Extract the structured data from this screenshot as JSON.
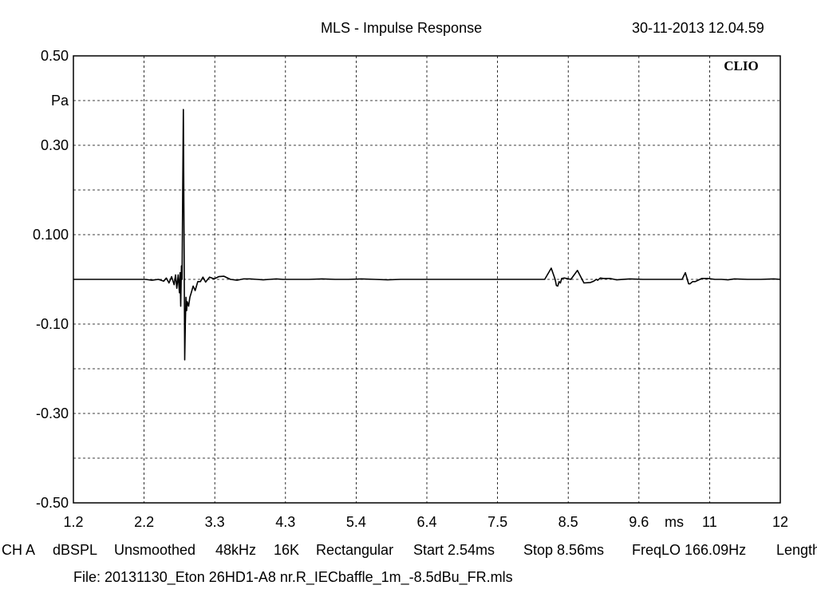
{
  "header": {
    "title": "MLS - Impulse Response",
    "timestamp": "30-11-2013 12.04.59"
  },
  "chart_data": {
    "type": "line",
    "title": "MLS - Impulse Response",
    "xlabel": "ms",
    "ylabel": "Pa",
    "brand": "CLIO",
    "grid": true,
    "xlim": [
      1.2,
      12
    ],
    "ylim": [
      -0.5,
      0.5
    ],
    "x_ticks": [
      "1.2",
      "2.2",
      "3.3",
      "4.3",
      "5.4",
      "6.4",
      "7.5",
      "8.5",
      "9.6",
      "11",
      "12"
    ],
    "y_ticks": [
      "0.50",
      "Pa",
      "0.30",
      "",
      "0.100",
      "",
      "-0.10",
      "",
      "-0.30",
      "",
      "-0.50"
    ],
    "series": [
      {
        "color": "#000000",
        "x": [
          1.2,
          2.18,
          2.3,
          2.4,
          2.5,
          2.58,
          2.62,
          2.66,
          2.7,
          2.74,
          2.76,
          2.78,
          2.8,
          2.82,
          2.83,
          2.84,
          2.85,
          2.86,
          2.87,
          2.88,
          2.89,
          2.9,
          2.91,
          2.92,
          2.93,
          2.94,
          2.96,
          2.98,
          3.0,
          3.03,
          3.06,
          3.1,
          3.14,
          3.18,
          3.22,
          3.28,
          3.35,
          3.42,
          3.5,
          3.6,
          3.7,
          3.8,
          3.9,
          4.0,
          4.1,
          4.2,
          4.3,
          4.4,
          4.6,
          4.8,
          5.0,
          5.2,
          5.4,
          5.6,
          5.8,
          6.0,
          6.2,
          6.4,
          6.6,
          6.8,
          7.0,
          7.2,
          7.4,
          7.6,
          7.8,
          8.0,
          8.2,
          8.4,
          8.5,
          8.56,
          8.58,
          8.6,
          8.62,
          8.64,
          8.66,
          8.7,
          8.8,
          8.9,
          9.0,
          9.1,
          9.15,
          9.19,
          9.21,
          9.25,
          9.3,
          9.4,
          9.5,
          9.7,
          9.9,
          10.1,
          10.3,
          10.4,
          10.5,
          10.55,
          10.6,
          10.62,
          10.66,
          10.7,
          10.8,
          10.9,
          11.0,
          11.1,
          11.2,
          11.3,
          11.5,
          11.7,
          11.9,
          12.0
        ],
        "y": [
          0.0,
          0.0,
          0.0,
          -0.002,
          0.0,
          -0.004,
          0.003,
          -0.008,
          0.006,
          -0.012,
          0.01,
          -0.02,
          0.01,
          -0.03,
          0.015,
          -0.06,
          0.03,
          0.0,
          0.2,
          0.38,
          0.12,
          -0.18,
          -0.1,
          -0.04,
          -0.07,
          -0.05,
          -0.06,
          -0.04,
          -0.03,
          -0.015,
          -0.025,
          -0.005,
          -0.005,
          0.005,
          -0.006,
          0.005,
          0.001,
          0.006,
          0.007,
          0.0,
          -0.002,
          0.001,
          0.001,
          0.0,
          -0.001,
          0.0,
          0.001,
          0.0,
          0.0,
          0.0,
          0.001,
          0.0,
          0.0,
          0.001,
          0.0,
          -0.001,
          0.0,
          0.0,
          0.0,
          0.0,
          0.0,
          0.0,
          0.0,
          0.0,
          0.0,
          0.0,
          0.0,
          0.0,
          0.025,
          0.0,
          -0.014,
          -0.015,
          -0.005,
          -0.008,
          0.002,
          0.003,
          0.0,
          0.02,
          -0.008,
          -0.007,
          -0.004,
          0.0,
          -0.002,
          0.003,
          0.002,
          0.002,
          -0.001,
          0.001,
          0.0,
          0.0,
          0.0,
          0.0,
          0.0,
          0.015,
          -0.01,
          -0.01,
          -0.005,
          -0.005,
          0.002,
          0.002,
          0.0,
          0.0,
          -0.001,
          0.001,
          0.0,
          0.0,
          0.001,
          0.0
        ]
      }
    ]
  },
  "status_bar": [
    "CH A",
    "dBSPL",
    "Unsmoothed",
    "48kHz",
    "16K",
    "Rectangular",
    "Start 2.54ms",
    "Stop 8.56ms",
    "FreqLO 166.09Hz",
    "Length"
  ],
  "file_line": "File: 20131130_Eton 26HD1-A8 nr.R_IECbaffle_1m_-8.5dBu_FR.mls"
}
